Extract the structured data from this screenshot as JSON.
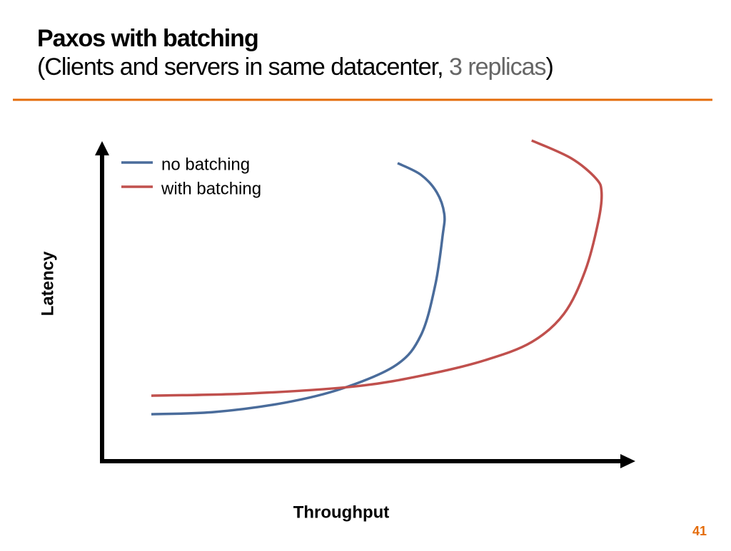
{
  "chart_data": {
    "type": "line",
    "title": "Paxos with batching",
    "subtitle": [
      "(Clients and servers in same datacenter, ",
      "3 replicas",
      ")"
    ],
    "x_label": "Throughput",
    "y_label": "Latency",
    "xlim": [
      0,
      100
    ],
    "ylim": [
      0,
      100
    ],
    "legend": "top-left",
    "series": [
      {
        "name": "no batching",
        "color": "#4a6c9b",
        "x": [
          9.3,
          21.2,
          34.6,
          45.4,
          55.5,
          60.2,
          62.9,
          64.3,
          64.6,
          63.2,
          60.2,
          55.8
        ],
        "values": [
          14.9,
          15.6,
          18.6,
          23.1,
          30.5,
          40.0,
          55.9,
          71.7,
          78.5,
          85.3,
          90.9,
          94.6
        ]
      },
      {
        "name": "with batching",
        "color": "#c0504d",
        "x": [
          9.3,
          27.9,
          48.1,
          61.6,
          72.4,
          81.1,
          87.2,
          91.2,
          93.7,
          94.3,
          93.2,
          88.5,
          81.1
        ],
        "values": [
          20.8,
          21.5,
          23.8,
          27.6,
          32.1,
          37.8,
          46.8,
          60.4,
          76.2,
          85.3,
          89.8,
          96.2,
          101.8
        ]
      }
    ],
    "page_number": "41"
  }
}
